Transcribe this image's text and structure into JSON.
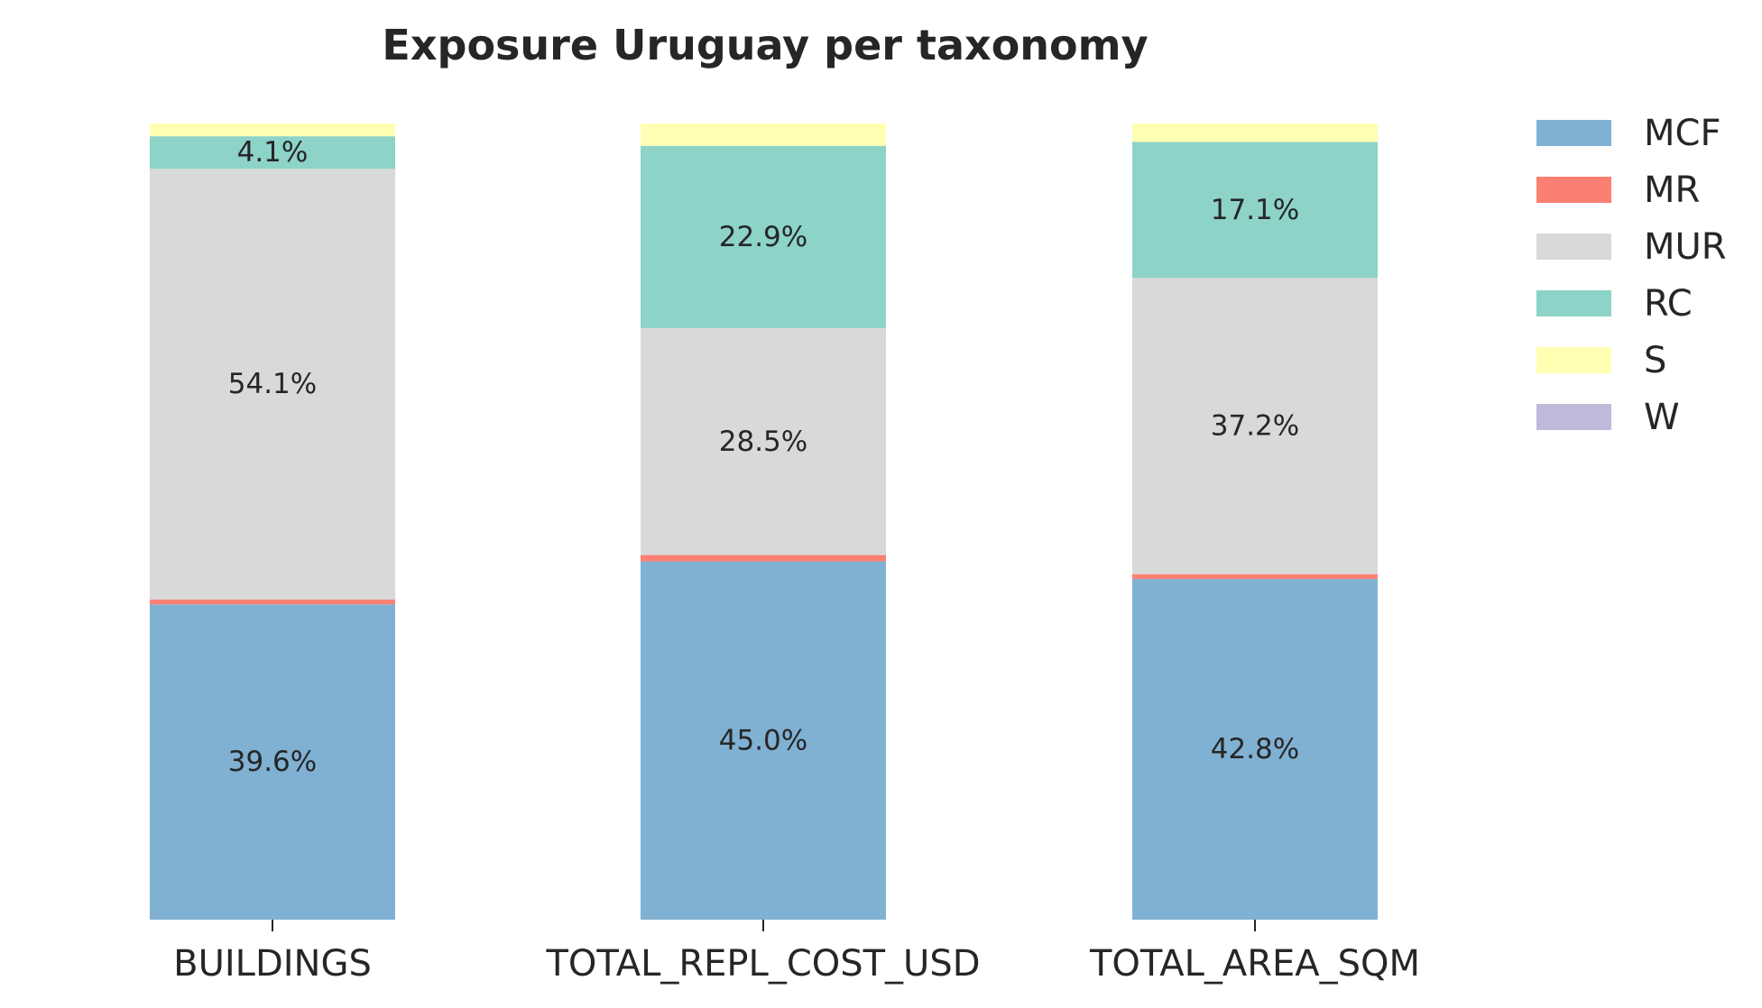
{
  "chart_data": {
    "type": "bar",
    "stacked": true,
    "title": "Exposure Uruguay per taxonomy",
    "categories": [
      "BUILDINGS",
      "TOTAL_REPL_COST_USD",
      "TOTAL_AREA_SQM"
    ],
    "ylim": [
      0,
      100
    ],
    "grid": false,
    "legend_position": "top-right",
    "series": [
      {
        "name": "MCF",
        "color": "#80b1d3",
        "values": [
          39.6,
          45.0,
          42.8
        ]
      },
      {
        "name": "MR",
        "color": "#fb8072",
        "values": [
          0.6,
          0.8,
          0.6
        ]
      },
      {
        "name": "MUR",
        "color": "#d9d9d9",
        "values": [
          54.1,
          28.5,
          37.2
        ]
      },
      {
        "name": "RC",
        "color": "#8dd3c7",
        "values": [
          4.1,
          22.9,
          17.1
        ]
      },
      {
        "name": "S",
        "color": "#ffffb3",
        "values": [
          1.6,
          2.8,
          2.3
        ]
      },
      {
        "name": "W",
        "color": "#bebada",
        "values": [
          0.0,
          0.0,
          0.0
        ]
      }
    ],
    "data_labels": [
      [
        "39.6%",
        "",
        "54.1%",
        "4.1%",
        "",
        ""
      ],
      [
        "45.0%",
        "",
        "28.5%",
        "22.9%",
        "",
        ""
      ],
      [
        "42.8%",
        "",
        "37.2%",
        "17.1%",
        "",
        ""
      ]
    ]
  }
}
